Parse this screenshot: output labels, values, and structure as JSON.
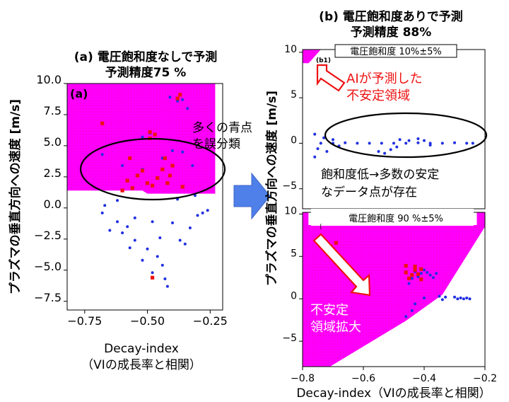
{
  "colors": {
    "region": "#ff00ff",
    "stable_point": "#1f2fe0",
    "unstable_point": "#ee1111",
    "annotation_red": "#ee1111",
    "arrow_fill": "#4f7fe8"
  },
  "panel_a": {
    "title_line1": "(a) 電圧飽和度なしで予測",
    "title_line2": "予測精度75 %",
    "inner_label": "(a)",
    "annotation_line1": "多くの青点",
    "annotation_line2": "を誤分類",
    "ylabel": "プラズマの垂直方向への速度 [m/s]",
    "xlabel_line1": "Decay-index",
    "xlabel_line2": "（VIの成長率と相関）",
    "x_ticks": [
      "−0.75",
      "−0.50",
      "−0.25"
    ],
    "y_ticks": [
      "10.0",
      "7.5",
      "5.0",
      "2.5",
      "0.0",
      "−2.5",
      "−5.0",
      "−7.5"
    ]
  },
  "panel_b": {
    "title_line1": "(b) 電圧飽和度ありで予測",
    "title_line2": "予測精度 88%",
    "b1_label": "(b1)",
    "b1_box_label": "電圧飽和度 10%±5%",
    "b1_annotation_line1": "AIが予測した",
    "b1_annotation_line2": "不安定領域",
    "b1_bottom_line1": "飽和度低→多数の安定",
    "b1_bottom_line2": "なデータ点が存在",
    "b1_y_ticks": [
      "10",
      "5",
      "0",
      "−5"
    ],
    "b2_label": "(",
    "b2_box_label": "電圧飽和度 90 %±5%",
    "b2_annotation_line1": "不安定",
    "b2_annotation_line2": "領域拡大",
    "b2_y_ticks": [
      "10",
      "5",
      "0",
      "−5"
    ],
    "x_ticks": [
      "−0.8",
      "−0.6",
      "−0.4",
      "−0.2"
    ],
    "ylabel": "プラズマの垂直方向への速度 [m/s]",
    "xlabel": "Decay-index（VIの成長率と相関）"
  },
  "chart_data": [
    {
      "type": "scatter",
      "title": "(a) 電圧飽和度なしで予測 予測精度75 %",
      "xlabel": "Decay-index（VIの成長率と相関）",
      "ylabel": "プラズマの垂直方向への速度 [m/s]",
      "xlim": [
        -0.82,
        -0.2
      ],
      "ylim": [
        -8.2,
        10.0
      ],
      "grid": false,
      "unstable_region": [
        [
          -0.82,
          10.0
        ],
        [
          -0.23,
          10.0
        ],
        [
          -0.23,
          1.15
        ],
        [
          -0.5,
          1.15
        ],
        [
          -0.52,
          1.4
        ],
        [
          -0.82,
          1.4
        ]
      ],
      "series": [
        {
          "kind": "stable",
          "points": [
            [
              -0.68,
              4.3
            ],
            [
              -0.6,
              3.4
            ],
            [
              -0.52,
              3.1
            ],
            [
              -0.44,
              4.0
            ],
            [
              -0.4,
              4.6
            ],
            [
              -0.36,
              4.5
            ],
            [
              -0.32,
              3.4
            ],
            [
              -0.38,
              8.6
            ],
            [
              -0.41,
              8.9
            ],
            [
              -0.36,
              8.7
            ],
            [
              -0.34,
              8.0
            ],
            [
              -0.49,
              6.0
            ],
            [
              -0.52,
              5.7
            ],
            [
              -0.68,
              -0.4
            ],
            [
              -0.62,
              -1.1
            ],
            [
              -0.6,
              -2.0
            ],
            [
              -0.55,
              -2.6
            ],
            [
              -0.5,
              -3.3
            ],
            [
              -0.46,
              -3.9
            ],
            [
              -0.44,
              -4.6
            ],
            [
              -0.57,
              -3.2
            ],
            [
              -0.52,
              -4.2
            ],
            [
              -0.48,
              -5.2
            ],
            [
              -0.43,
              -5.7
            ],
            [
              -0.42,
              -6.3
            ],
            [
              -0.65,
              -1.8
            ],
            [
              -0.58,
              -1.5
            ],
            [
              -0.4,
              -1.2
            ],
            [
              -0.37,
              -2.6
            ],
            [
              -0.35,
              -2.9
            ],
            [
              -0.33,
              -1.6
            ],
            [
              -0.3,
              -0.6
            ],
            [
              -0.28,
              -0.4
            ],
            [
              -0.26,
              -0.2
            ],
            [
              -0.45,
              -2.4
            ],
            [
              -0.48,
              -1.1
            ],
            [
              -0.55,
              -0.8
            ],
            [
              -0.62,
              0.6
            ],
            [
              -0.67,
              0.2
            ],
            [
              -0.38,
              0.7
            ],
            [
              -0.31,
              1.0
            ]
          ]
        },
        {
          "kind": "unstable",
          "points": [
            [
              -0.68,
              6.8
            ],
            [
              -0.49,
              6.1
            ],
            [
              -0.49,
              5.6
            ],
            [
              -0.47,
              5.9
            ],
            [
              -0.43,
              4.0
            ],
            [
              -0.41,
              2.6
            ],
            [
              -0.4,
              3.4
            ],
            [
              -0.44,
              3.1
            ],
            [
              -0.46,
              2.4
            ],
            [
              -0.48,
              1.8
            ],
            [
              -0.5,
              2.0
            ],
            [
              -0.52,
              3.0
            ],
            [
              -0.54,
              2.6
            ],
            [
              -0.57,
              4.0
            ],
            [
              -0.58,
              2.2
            ],
            [
              -0.6,
              1.4
            ],
            [
              -0.56,
              1.6
            ],
            [
              -0.38,
              8.8
            ],
            [
              -0.37,
              9.1
            ],
            [
              -0.42,
              2.0
            ],
            [
              -0.36,
              1.7
            ],
            [
              -0.48,
              -5.6
            ]
          ]
        }
      ]
    },
    {
      "type": "scatter",
      "title": "電圧飽和度 10%±5%",
      "ylabel": "プラズマの垂直方向への速度 [m/s]",
      "xlim": [
        -0.8,
        -0.2
      ],
      "ylim": [
        -7.2,
        10.3
      ],
      "grid": false,
      "unstable_region": [
        [
          -0.8,
          10.3
        ],
        [
          -0.74,
          10.3
        ],
        [
          -0.78,
          8.8
        ],
        [
          -0.8,
          8.8
        ]
      ],
      "series": [
        {
          "kind": "stable",
          "points": [
            [
              -0.74,
              0.0
            ],
            [
              -0.7,
              0.0
            ],
            [
              -0.66,
              0.05
            ],
            [
              -0.62,
              0.0
            ],
            [
              -0.58,
              0.0
            ],
            [
              -0.54,
              0.0
            ],
            [
              -0.5,
              0.0
            ],
            [
              -0.46,
              0.0
            ],
            [
              -0.42,
              0.05
            ],
            [
              -0.38,
              0.0
            ],
            [
              -0.34,
              0.0
            ],
            [
              -0.3,
              0.05
            ],
            [
              -0.26,
              0.0
            ],
            [
              -0.24,
              0.0
            ],
            [
              -0.76,
              1.0
            ],
            [
              -0.75,
              -0.6
            ],
            [
              -0.76,
              -1.5
            ],
            [
              -0.73,
              0.6
            ],
            [
              -0.72,
              -0.9
            ],
            [
              -0.7,
              0.4
            ],
            [
              -0.68,
              -0.3
            ],
            [
              -0.55,
              -0.9
            ],
            [
              -0.53,
              -1.1
            ],
            [
              -0.51,
              -0.7
            ],
            [
              -0.49,
              -0.4
            ],
            [
              -0.45,
              0.3
            ],
            [
              -0.42,
              0.5
            ],
            [
              -0.4,
              0.3
            ],
            [
              -0.48,
              0.4
            ],
            [
              -0.38,
              -0.2
            ]
          ]
        },
        {
          "kind": "unstable",
          "points": []
        }
      ]
    },
    {
      "type": "scatter",
      "title": "電圧飽和度 90 %±5%",
      "xlabel": "Decay-index（VIの成長率と相関）",
      "ylabel": "プラズマの垂直方向への速度 [m/s]",
      "xlim": [
        -0.8,
        -0.2
      ],
      "ylim": [
        -8.0,
        10.2
      ],
      "grid": false,
      "unstable_region": [
        [
          -0.8,
          10.2
        ],
        [
          -0.7808,
          10.2
        ],
        [
          -0.7808,
          8.7
        ],
        [
          -0.2268,
          8.7
        ],
        [
          -0.2268,
          10.2
        ],
        [
          -0.2,
          10.2
        ],
        [
          -0.2,
          8.5
        ],
        [
          -0.34,
          0.5
        ],
        [
          -0.46,
          -2.6
        ],
        [
          -0.71,
          -8.0
        ],
        [
          -0.8,
          -8.0
        ]
      ],
      "series": [
        {
          "kind": "stable",
          "points": [
            [
              -0.3,
              0.2
            ],
            [
              -0.29,
              0.0
            ],
            [
              -0.28,
              0.1
            ],
            [
              -0.27,
              0.0
            ],
            [
              -0.26,
              0.1
            ],
            [
              -0.25,
              0.0
            ],
            [
              -0.35,
              0.3
            ],
            [
              -0.34,
              -0.1
            ],
            [
              -0.43,
              3.2
            ],
            [
              -0.42,
              2.6
            ],
            [
              -0.41,
              3.0
            ],
            [
              -0.4,
              3.4
            ],
            [
              -0.39,
              3.1
            ],
            [
              -0.38,
              2.8
            ],
            [
              -0.37,
              2.5
            ],
            [
              -0.36,
              3.0
            ],
            [
              -0.44,
              2.4
            ],
            [
              -0.45,
              1.8
            ],
            [
              -0.43,
              -0.6
            ],
            [
              -0.44,
              -1.4
            ],
            [
              -0.46,
              -2.1
            ],
            [
              -0.4,
              0.1
            ],
            [
              -0.33,
              0.2
            ]
          ]
        },
        {
          "kind": "unstable",
          "points": [
            [
              -0.69,
              6.6
            ],
            [
              -0.46,
              3.9
            ],
            [
              -0.43,
              3.8
            ],
            [
              -0.43,
              3.4
            ],
            [
              -0.41,
              3.5
            ],
            [
              -0.44,
              2.8
            ],
            [
              -0.42,
              2.9
            ],
            [
              -0.45,
              2.4
            ],
            [
              -0.41,
              2.3
            ],
            [
              -0.46,
              3.1
            ]
          ]
        }
      ]
    }
  ]
}
